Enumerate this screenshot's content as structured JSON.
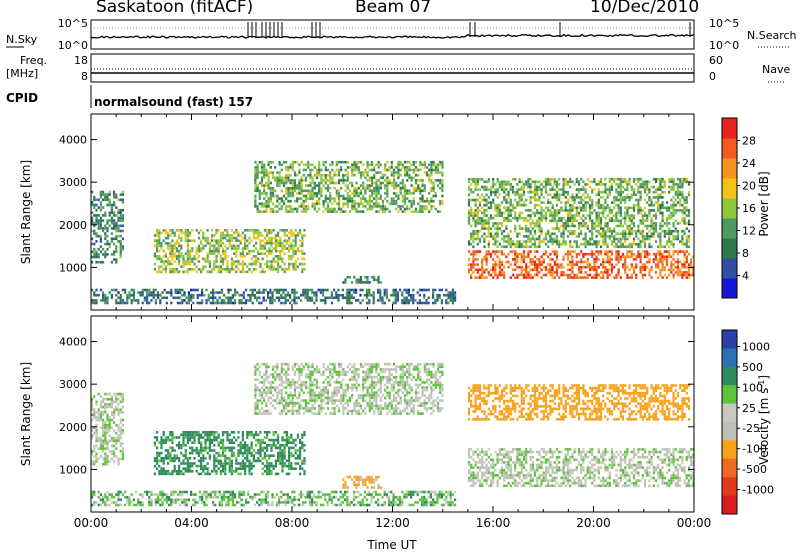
{
  "header": {
    "station": "Saskatoon (fitACF)",
    "beam": "Beam 07",
    "date": "10/Dec/2010"
  },
  "noise_panel": {
    "left_label": "N.Sky",
    "top_tick": "10^5",
    "bottom_tick": "10^0",
    "right_top_tick": "10^5",
    "right_bottom_tick": "10^0",
    "right_label": "N.Search"
  },
  "freq_panel": {
    "left_label_1": "Freq.",
    "left_label_2": "[MHz]",
    "tick_top": "18",
    "tick_bottom": "8",
    "right_tick_top": "60",
    "right_tick_bottom": "0",
    "right_label": "Nave"
  },
  "cpid": {
    "label": "CPID",
    "text": "normalsound (fast) 157"
  },
  "colors": {
    "power_scale": [
      "#1717d6",
      "#2e4fa3",
      "#2f7a4a",
      "#4e9a62",
      "#8dc63f",
      "#f5c21b",
      "#f7941d",
      "#f15a24",
      "#e7241d"
    ],
    "velocity_scale": [
      "#2c3ea8",
      "#2f6fb5",
      "#2f8a5e",
      "#5ec23a",
      "#c8c8c0",
      "#bfbfb8",
      "#f7a21d",
      "#f26a21",
      "#e23a1d",
      "#d81e1e"
    ]
  },
  "chart_data": [
    {
      "type": "heatmap",
      "title": "Power",
      "ylabel": "Slant Range [km]",
      "yticks": [
        "1000",
        "2000",
        "3000",
        "4000"
      ],
      "ylim": [
        0,
        4600
      ],
      "xlim_hours": [
        0,
        24
      ],
      "colorbar": {
        "label": "Power [dB]",
        "ticks": [
          "4",
          "8",
          "12",
          "16",
          "20",
          "24",
          "28"
        ],
        "range": [
          0,
          32
        ]
      },
      "echo_regions": [
        {
          "t_start": "00:00",
          "t_end": "01:15",
          "range_km": [
            1100,
            2800
          ],
          "value_db": 10
        },
        {
          "t_start": "02:30",
          "t_end": "08:30",
          "range_km": [
            900,
            1900
          ],
          "value_db": 16
        },
        {
          "t_start": "06:30",
          "t_end": "14:00",
          "range_km": [
            2300,
            3500
          ],
          "value_db": 14
        },
        {
          "t_start": "10:00",
          "t_end": "11:30",
          "range_km": [
            650,
            800
          ],
          "value_db": 10
        },
        {
          "t_start": "15:00",
          "t_end": "23:50",
          "range_km": [
            1500,
            3100
          ],
          "value_db": 14
        },
        {
          "t_start": "15:00",
          "t_end": "24:00",
          "range_km": [
            750,
            1400
          ],
          "value_db": 26
        },
        {
          "t_start": "00:00",
          "t_end": "14:30",
          "range_km": [
            180,
            500
          ],
          "value_db": 8
        }
      ]
    },
    {
      "type": "heatmap",
      "title": "Velocity",
      "ylabel": "Slant Range [km]",
      "xlabel": "Time UT",
      "xticks": [
        "00:00",
        "04:00",
        "08:00",
        "12:00",
        "16:00",
        "20:00",
        "00:00"
      ],
      "yticks": [
        "1000",
        "2000",
        "3000",
        "4000"
      ],
      "ylim": [
        0,
        4600
      ],
      "xlim_hours": [
        0,
        24
      ],
      "colorbar": {
        "label": "Velocity [m s^-1]",
        "ticks": [
          "1000",
          "500",
          "100",
          "25",
          "-25",
          "-100",
          "-500",
          "-1000"
        ]
      },
      "echo_regions": [
        {
          "t_start": "00:00",
          "t_end": "01:15",
          "range_km": [
            1100,
            2800
          ],
          "value_ms": 0
        },
        {
          "t_start": "02:30",
          "t_end": "08:30",
          "range_km": [
            900,
            1900
          ],
          "value_ms": 150
        },
        {
          "t_start": "06:30",
          "t_end": "14:00",
          "range_km": [
            2300,
            3500
          ],
          "value_ms": 0
        },
        {
          "t_start": "10:00",
          "t_end": "11:30",
          "range_km": [
            600,
            850
          ],
          "value_ms": -150
        },
        {
          "t_start": "15:00",
          "t_end": "23:50",
          "range_km": [
            2200,
            3000
          ],
          "value_ms": -200
        },
        {
          "t_start": "15:00",
          "t_end": "24:00",
          "range_km": [
            600,
            1500
          ],
          "value_ms": 0
        },
        {
          "t_start": "00:00",
          "t_end": "14:30",
          "range_km": [
            180,
            500
          ],
          "value_ms": 60
        }
      ]
    }
  ]
}
